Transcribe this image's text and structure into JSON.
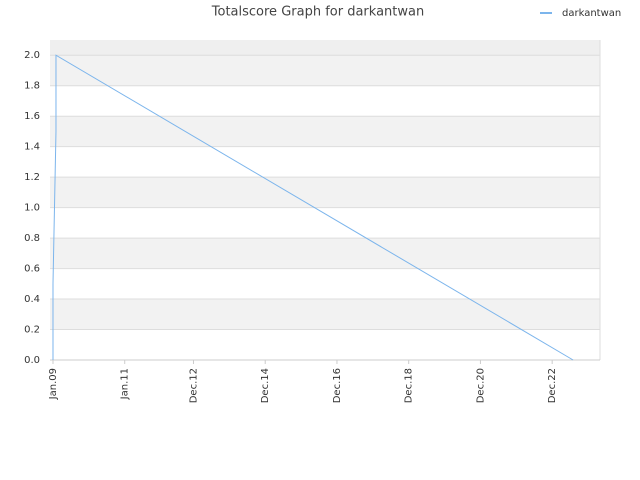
{
  "chart_data": {
    "type": "line",
    "title": "Totalscore Graph for darkantwan",
    "x": [
      "2009-01",
      "2009-01",
      "2009-02",
      "2009-02",
      "2023-07"
    ],
    "series": [
      {
        "name": "darkantwan",
        "color": "#7cb5ec",
        "values": [
          0,
          0.5,
          1.5,
          2.0,
          0
        ]
      }
    ],
    "xlim": [
      "2008-12",
      "2024-04"
    ],
    "xticks": [
      {
        "value": "2009-01",
        "label": "Jan.09"
      },
      {
        "value": "2011-01",
        "label": "Jan.11"
      },
      {
        "value": "2012-12",
        "label": "Dec.12"
      },
      {
        "value": "2014-12",
        "label": "Dec.14"
      },
      {
        "value": "2016-12",
        "label": "Dec.16"
      },
      {
        "value": "2018-12",
        "label": "Dec.18"
      },
      {
        "value": "2020-12",
        "label": "Dec.20"
      },
      {
        "value": "2022-12",
        "label": "Dec.22"
      }
    ],
    "ylim": [
      0,
      2.1
    ],
    "yticks": [
      {
        "value": 0,
        "label": "0.0"
      },
      0.2,
      0.4,
      0.6,
      0.8,
      {
        "value": 1,
        "label": "1.0"
      },
      1.2,
      1.4,
      1.6,
      1.8,
      {
        "value": 2,
        "label": "2.0"
      }
    ],
    "grid": true,
    "legend": "top-right"
  }
}
